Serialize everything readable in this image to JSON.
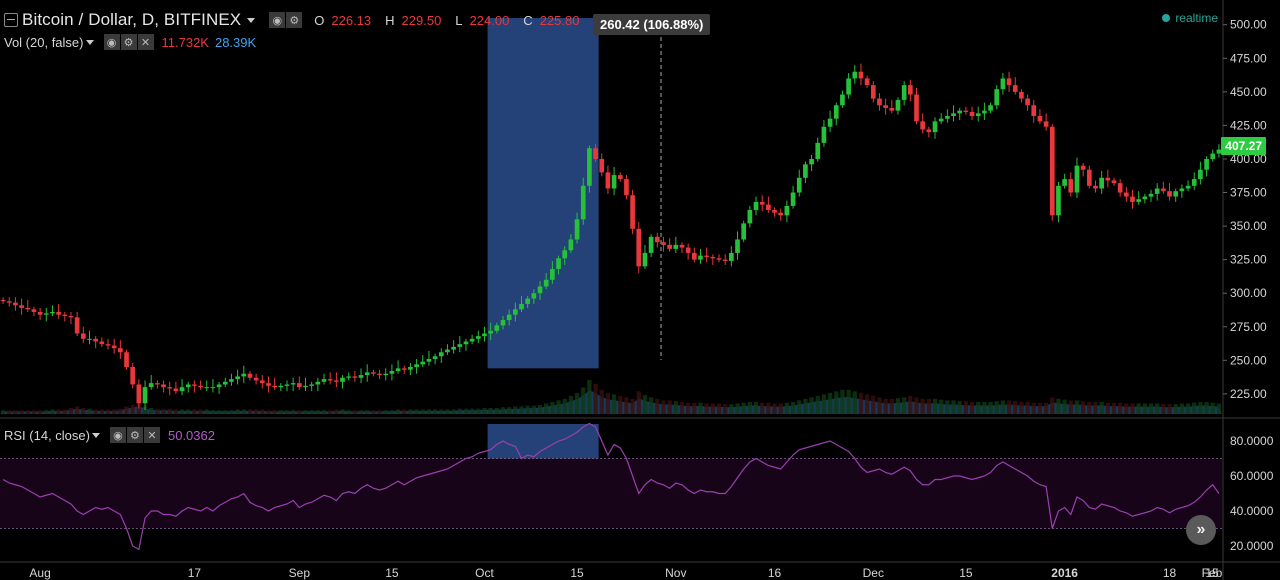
{
  "header": {
    "title": "Bitcoin / Dollar, D, BITFINEX",
    "ohlc": {
      "o_label": "O",
      "o_value": "226.13",
      "h_label": "H",
      "h_value": "229.50",
      "l_label": "L",
      "l_value": "224.00",
      "c_label": "C",
      "c_value": "225.80"
    },
    "realtime_label": "realtime"
  },
  "volume_indicator": {
    "label": "Vol (20, false)",
    "value1": "11.732K",
    "value2": "28.39K"
  },
  "rsi_indicator": {
    "label": "RSI (14, close)",
    "value": "50.0362"
  },
  "measure_tooltip": "260.42 (106.88%)",
  "last_price_tag": "407.27",
  "scroll_button_glyph": "»",
  "icons": [
    "collapse-square-icon",
    "dropdown-caret-icon",
    "eye-icon",
    "gear-icon",
    "close-icon",
    "realtime-dot-icon",
    "scroll-right-icon"
  ],
  "colors": {
    "up": "#26c03a",
    "down": "#e8383b",
    "measure_box": "#2a4d8c",
    "rsi_line": "#9b3fb1",
    "rsi_band": "#170418",
    "volume_area": "#1a4a6e",
    "price_tag": "#2ecc40"
  },
  "chart_data": [
    {
      "type": "candlestick",
      "x_tick_labels": [
        "Aug",
        "17",
        "Sep",
        "15",
        "Oct",
        "15",
        "Nov",
        "16",
        "Dec",
        "15",
        "2016",
        "18",
        "Feb",
        "15"
      ],
      "y_tick_labels": [
        "225.00",
        "250.00",
        "275.00",
        "300.00",
        "325.00",
        "350.00",
        "375.00",
        "400.00",
        "425.00",
        "450.00",
        "475.00",
        "500.00"
      ],
      "ylim": [
        210,
        508
      ],
      "series": [
        {
          "close": [
            294,
            293,
            291,
            289,
            288,
            286,
            284,
            285,
            286,
            284,
            283,
            282,
            270,
            266,
            266,
            264,
            262,
            261,
            259,
            256,
            245,
            232,
            218,
            230,
            233,
            232,
            230,
            229,
            227,
            230,
            232,
            231,
            230,
            230,
            230,
            232,
            234,
            236,
            238,
            240,
            237,
            235,
            233,
            231,
            230,
            231,
            232,
            233,
            230,
            231,
            232,
            234,
            236,
            235,
            234,
            237,
            238,
            237,
            239,
            241,
            240,
            239,
            240,
            242,
            244,
            243,
            245,
            247,
            249,
            251,
            253,
            256,
            258,
            260,
            262,
            264,
            266,
            268,
            270,
            272,
            276,
            280,
            284,
            288,
            292,
            296,
            300,
            305,
            310,
            318,
            326,
            332,
            340,
            355,
            380,
            408,
            400,
            390,
            378,
            388,
            385,
            373,
            348,
            320,
            330,
            342,
            338,
            336,
            333,
            336,
            334,
            330,
            325,
            328,
            327,
            326,
            325,
            324,
            330,
            340,
            352,
            362,
            368,
            366,
            362,
            360,
            358,
            365,
            375,
            386,
            396,
            400,
            412,
            424,
            430,
            440,
            448,
            460,
            465,
            460,
            455,
            445,
            440,
            438,
            436,
            444,
            455,
            448,
            428,
            422,
            420,
            428,
            430,
            432,
            434,
            436,
            435,
            432,
            434,
            436,
            440,
            452,
            460,
            455,
            450,
            445,
            440,
            432,
            428,
            424,
            358,
            380,
            385,
            375,
            395,
            392,
            380,
            378,
            386,
            384,
            382,
            375,
            372,
            368,
            370,
            372,
            374,
            378,
            376,
            372,
            376,
            378,
            380,
            385,
            392,
            400,
            404,
            407
          ],
          "volume": [
            5,
            5,
            5,
            5,
            5,
            5,
            5,
            5,
            6,
            6,
            6,
            8,
            10,
            8,
            7,
            6,
            6,
            6,
            6,
            7,
            10,
            12,
            15,
            10,
            8,
            7,
            7,
            7,
            6,
            6,
            6,
            6,
            6,
            6,
            5,
            5,
            5,
            5,
            6,
            6,
            6,
            6,
            6,
            5,
            5,
            5,
            5,
            5,
            5,
            5,
            5,
            5,
            5,
            5,
            6,
            6,
            5,
            5,
            5,
            5,
            5,
            5,
            5,
            5,
            6,
            6,
            6,
            6,
            6,
            6,
            6,
            6,
            6,
            6,
            7,
            7,
            7,
            7,
            8,
            8,
            8,
            9,
            9,
            10,
            10,
            11,
            11,
            12,
            14,
            16,
            18,
            20,
            24,
            28,
            35,
            45,
            40,
            32,
            28,
            26,
            24,
            22,
            20,
            30,
            25,
            22,
            20,
            18,
            18,
            17,
            16,
            15,
            15,
            15,
            14,
            14,
            14,
            13,
            13,
            14,
            15,
            16,
            16,
            15,
            15,
            14,
            14,
            15,
            16,
            18,
            20,
            22,
            24,
            26,
            28,
            30,
            32,
            32,
            30,
            28,
            26,
            24,
            22,
            20,
            20,
            21,
            22,
            24,
            22,
            20,
            20,
            20,
            19,
            18,
            18,
            17,
            17,
            16,
            16,
            16,
            16,
            17,
            18,
            18,
            17,
            16,
            16,
            15,
            15,
            15,
            22,
            20,
            19,
            18,
            18,
            17,
            16,
            16,
            16,
            15,
            15,
            15,
            14,
            14,
            14,
            14,
            14,
            14,
            13,
            13,
            13,
            14,
            14,
            15,
            16,
            16,
            15,
            14
          ]
        }
      ],
      "measure_annotation": "260.42 (106.88%)"
    },
    {
      "type": "line",
      "y_tick_labels": [
        "20.0000",
        "40.0000",
        "60.0000",
        "80.0000"
      ],
      "ylim": [
        12,
        92
      ],
      "band": [
        30,
        70
      ],
      "series": [
        {
          "values": [
            58,
            56,
            55,
            54,
            52,
            50,
            48,
            49,
            50,
            48,
            46,
            44,
            40,
            38,
            40,
            42,
            41,
            42,
            40,
            38,
            30,
            20,
            18,
            36,
            40,
            40,
            38,
            38,
            37,
            40,
            42,
            41,
            40,
            42,
            40,
            43,
            45,
            47,
            48,
            50,
            45,
            43,
            42,
            40,
            42,
            43,
            44,
            46,
            42,
            44,
            45,
            47,
            49,
            48,
            46,
            50,
            51,
            50,
            53,
            55,
            53,
            52,
            53,
            55,
            57,
            55,
            57,
            59,
            60,
            61,
            62,
            63,
            64,
            66,
            68,
            70,
            71,
            73,
            74,
            75,
            78,
            80,
            78,
            77,
            70,
            72,
            71,
            74,
            76,
            78,
            80,
            81,
            83,
            85,
            88,
            90,
            88,
            80,
            72,
            78,
            76,
            70,
            60,
            50,
            55,
            58,
            56,
            55,
            53,
            56,
            55,
            52,
            50,
            52,
            51,
            51,
            50,
            50,
            54,
            59,
            64,
            68,
            70,
            68,
            66,
            65,
            64,
            68,
            72,
            75,
            76,
            77,
            78,
            79,
            80,
            78,
            76,
            74,
            70,
            65,
            62,
            63,
            64,
            62,
            61,
            63,
            65,
            63,
            58,
            55,
            55,
            58,
            58,
            59,
            60,
            60,
            59,
            58,
            59,
            60,
            62,
            66,
            68,
            66,
            64,
            62,
            60,
            57,
            55,
            54,
            30,
            40,
            42,
            38,
            48,
            46,
            42,
            41,
            44,
            43,
            42,
            40,
            39,
            37,
            38,
            39,
            40,
            42,
            41,
            39,
            41,
            42,
            43,
            45,
            48,
            52,
            55,
            50
          ]
        }
      ]
    }
  ]
}
